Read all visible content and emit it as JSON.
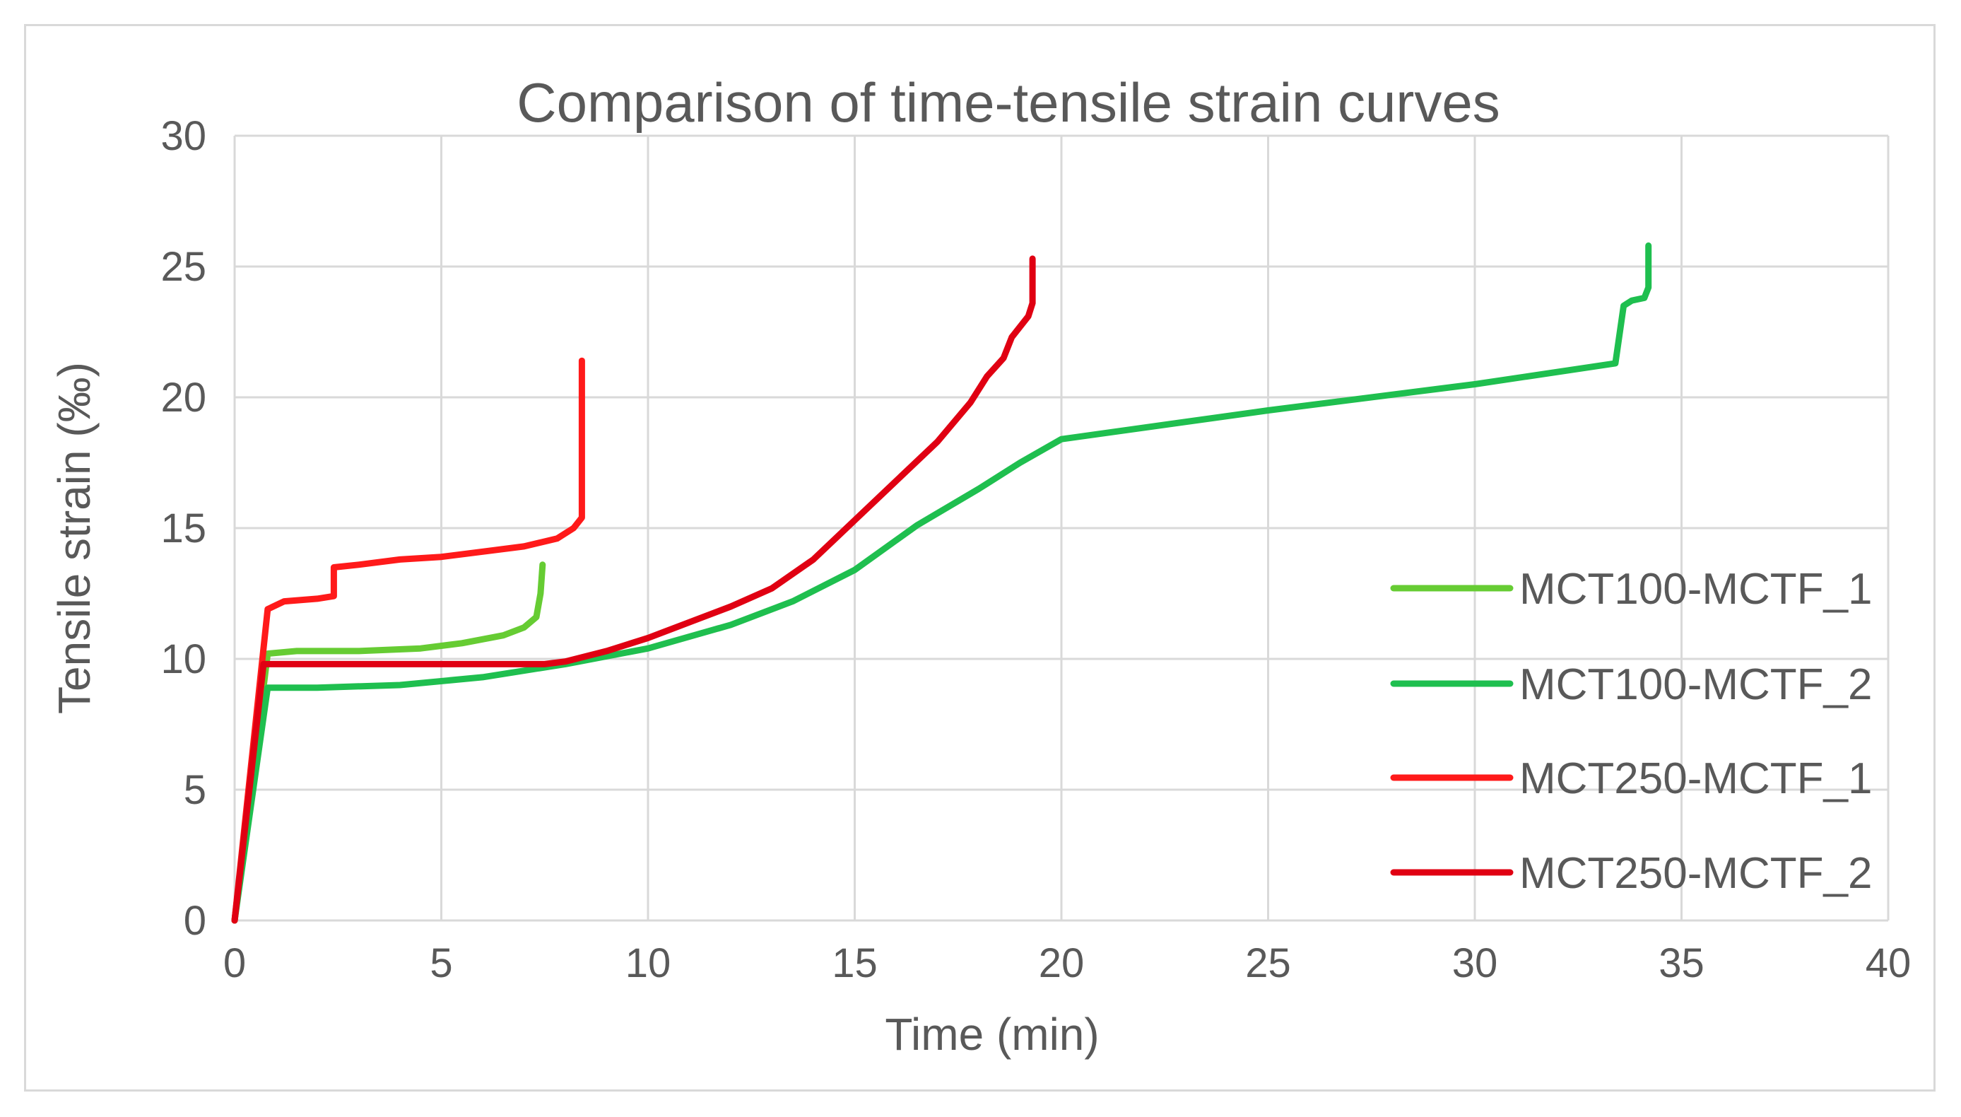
{
  "chart_data": {
    "type": "line",
    "title": "Comparison of time-tensile strain curves",
    "xlabel": "Time (min)",
    "ylabel": "Tensile strain (‰)",
    "xlim": [
      0,
      40
    ],
    "ylim": [
      0,
      30
    ],
    "x_ticks": [
      "0",
      "5",
      "10",
      "15",
      "20",
      "25",
      "30",
      "35",
      "40"
    ],
    "y_ticks": [
      "0",
      "5",
      "10",
      "15",
      "20",
      "25",
      "30"
    ],
    "grid": true,
    "legend_position": "right",
    "series": [
      {
        "name": "MCT100-MCTF_1",
        "color": "#66cc33",
        "points": [
          [
            0,
            0
          ],
          [
            0.8,
            10.2
          ],
          [
            1.5,
            10.3
          ],
          [
            3,
            10.3
          ],
          [
            4.5,
            10.4
          ],
          [
            5.5,
            10.6
          ],
          [
            6.5,
            10.9
          ],
          [
            7,
            11.2
          ],
          [
            7.3,
            11.6
          ],
          [
            7.4,
            12.5
          ],
          [
            7.45,
            13.6
          ]
        ]
      },
      {
        "name": "MCT100-MCTF_2",
        "color": "#1fbf4f",
        "points": [
          [
            0,
            0
          ],
          [
            0.8,
            8.9
          ],
          [
            2,
            8.9
          ],
          [
            4,
            9.0
          ],
          [
            6,
            9.3
          ],
          [
            8,
            9.8
          ],
          [
            10,
            10.4
          ],
          [
            12,
            11.3
          ],
          [
            13.5,
            12.2
          ],
          [
            15,
            13.4
          ],
          [
            16.5,
            15.1
          ],
          [
            18,
            16.5
          ],
          [
            19,
            17.5
          ],
          [
            20,
            18.4
          ],
          [
            25,
            19.5
          ],
          [
            30,
            20.5
          ],
          [
            33.4,
            21.3
          ],
          [
            33.6,
            23.5
          ],
          [
            33.8,
            23.7
          ],
          [
            34.1,
            23.8
          ],
          [
            34.2,
            24.2
          ],
          [
            34.2,
            25.8
          ]
        ]
      },
      {
        "name": "MCT250-MCTF_1",
        "color": "#ff1a1a",
        "points": [
          [
            0,
            0
          ],
          [
            0.8,
            11.9
          ],
          [
            1.2,
            12.2
          ],
          [
            2,
            12.3
          ],
          [
            2.4,
            12.4
          ],
          [
            2.4,
            13.5
          ],
          [
            3,
            13.6
          ],
          [
            4,
            13.8
          ],
          [
            5,
            13.9
          ],
          [
            6,
            14.1
          ],
          [
            7,
            14.3
          ],
          [
            7.8,
            14.6
          ],
          [
            8.2,
            15.0
          ],
          [
            8.4,
            15.4
          ],
          [
            8.4,
            21.4
          ]
        ]
      },
      {
        "name": "MCT250-MCTF_2",
        "color": "#e00012",
        "points": [
          [
            0,
            0
          ],
          [
            0.7,
            9.8
          ],
          [
            2,
            9.8
          ],
          [
            4,
            9.8
          ],
          [
            6,
            9.8
          ],
          [
            7.5,
            9.8
          ],
          [
            8,
            9.9
          ],
          [
            9,
            10.3
          ],
          [
            10,
            10.8
          ],
          [
            11,
            11.4
          ],
          [
            12,
            12.0
          ],
          [
            13,
            12.7
          ],
          [
            14,
            13.8
          ],
          [
            15,
            15.3
          ],
          [
            16,
            16.8
          ],
          [
            17,
            18.3
          ],
          [
            17.8,
            19.8
          ],
          [
            18.2,
            20.8
          ],
          [
            18.6,
            21.5
          ],
          [
            18.8,
            22.3
          ],
          [
            19.2,
            23.1
          ],
          [
            19.3,
            23.6
          ],
          [
            19.3,
            25.3
          ]
        ]
      }
    ]
  }
}
